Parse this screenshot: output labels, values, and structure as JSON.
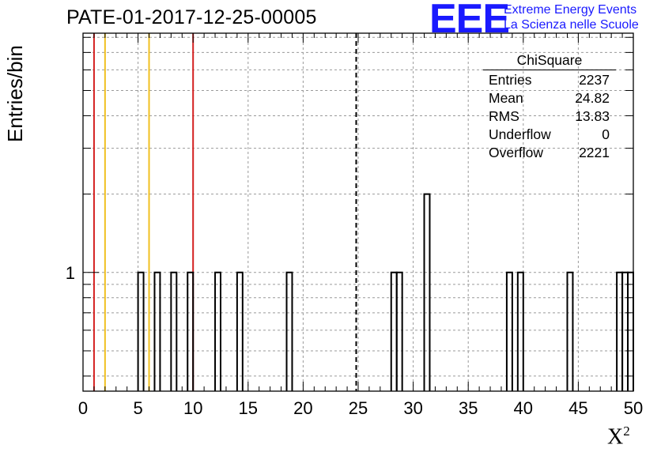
{
  "header": {
    "title": "PATE-01-2017-12-25-00005",
    "logo_text": "EEE",
    "logo_line1": "Extreme Energy Events",
    "logo_line2": "La Scienza nelle Scuole"
  },
  "stats_box": {
    "title": "ChiSquare",
    "rows": [
      {
        "label": "Entries",
        "value": "2237"
      },
      {
        "label": "Mean",
        "value": "24.82"
      },
      {
        "label": "RMS",
        "value": "13.83"
      },
      {
        "label": "Underflow",
        "value": "0"
      },
      {
        "label": "Overflow",
        "value": "2221"
      }
    ]
  },
  "colors": {
    "red_line": "#d42020",
    "yellow_line": "#f0c020",
    "histogram": "#000000",
    "grid": "#9a9a9a",
    "logo_blue": "#1a1aff"
  },
  "chart_data": {
    "type": "bar",
    "title": "PATE-01-2017-12-25-00005",
    "xlabel": "X",
    "xlabel_superscript": "2",
    "ylabel": "Entries/bin",
    "xlim": [
      0,
      50
    ],
    "ylim": [
      0.35,
      8.3
    ],
    "yscale": "log",
    "bin_width": 0.5,
    "x_ticks": [
      "0",
      "5",
      "10",
      "15",
      "20",
      "25",
      "30",
      "35",
      "40",
      "45",
      "50"
    ],
    "x_tick_values": [
      0,
      5,
      10,
      15,
      20,
      25,
      30,
      35,
      40,
      45,
      50
    ],
    "y_tick_labels": [
      {
        "value": 1,
        "label": "1"
      }
    ],
    "grid": true,
    "bins": [
      {
        "x0": 5.0,
        "count": 1
      },
      {
        "x0": 6.5,
        "count": 1
      },
      {
        "x0": 8.0,
        "count": 1
      },
      {
        "x0": 9.5,
        "count": 1
      },
      {
        "x0": 12.0,
        "count": 1
      },
      {
        "x0": 14.0,
        "count": 1
      },
      {
        "x0": 18.5,
        "count": 1
      },
      {
        "x0": 28.0,
        "count": 1
      },
      {
        "x0": 28.5,
        "count": 1
      },
      {
        "x0": 31.0,
        "count": 2
      },
      {
        "x0": 38.5,
        "count": 1
      },
      {
        "x0": 39.5,
        "count": 1
      },
      {
        "x0": 44.0,
        "count": 1
      },
      {
        "x0": 48.5,
        "count": 1
      },
      {
        "x0": 49.0,
        "count": 1
      },
      {
        "x0": 49.5,
        "count": 1
      }
    ],
    "vertical_lines": [
      {
        "x": 1,
        "color": "#d42020",
        "style": "solid"
      },
      {
        "x": 2,
        "color": "#f0c020",
        "style": "solid"
      },
      {
        "x": 6,
        "color": "#f0c020",
        "style": "solid"
      },
      {
        "x": 10,
        "color": "#d42020",
        "style": "solid"
      },
      {
        "x": 24.82,
        "color": "#000000",
        "style": "dashed"
      }
    ]
  }
}
